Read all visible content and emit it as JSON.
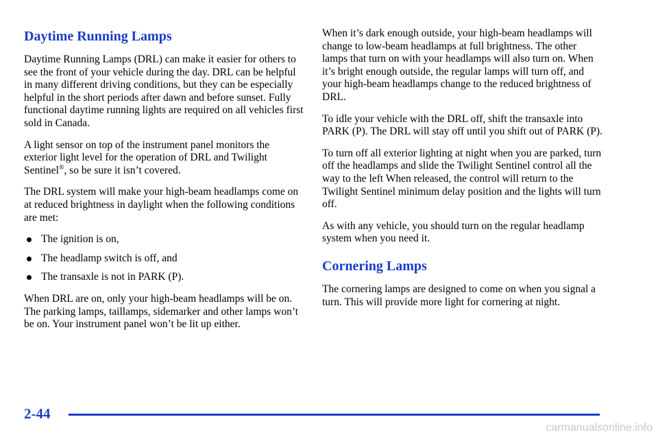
{
  "left": {
    "heading": "Daytime Running Lamps",
    "p1": "Daytime Running Lamps (DRL) can make it easier for others to see the front of your vehicle during the day. DRL can be helpful in many different driving conditions, but they can be especially helpful in the short periods after dawn and before sunset. Fully functional daytime running lights are required on all vehicles first sold in Canada.",
    "p2": {
      "before": "A light sensor on top of the instrument panel monitors the exterior light level for the operation of DRL and Twilight Sentinel",
      "sup": "®",
      "after": ", so be sure it isn’t covered."
    },
    "p3": "The DRL system will make your high-beam headlamps come on at reduced brightness in daylight when the following conditions are met:",
    "bullets": [
      "The ignition is on,",
      "The headlamp switch is off, and",
      "The transaxle is not in PARK (P)."
    ],
    "p4": "When DRL are on, only your high-beam headlamps will be on. The parking lamps, taillamps, sidemarker and other lamps won’t be on. Your instrument panel won’t be lit up either."
  },
  "right": {
    "p1": "When it’s dark enough outside, your high-beam headlamps will change to low-beam headlamps at full brightness. The other lamps that turn on with your headlamps will also turn on. When it’s bright enough outside, the regular lamps will turn off, and your high-beam headlamps change to the reduced brightness of DRL.",
    "p2": "To idle your vehicle with the DRL off, shift the transaxle into PARK (P). The DRL will stay off until you shift out of PARK (P).",
    "p3": "To turn off all exterior lighting at night when you are parked, turn off the headlamps and slide the Twilight Sentinel control all the way to the left When released, the control will return to the Twilight Sentinel minimum delay position and the lights will turn off.",
    "p4": "As with any vehicle, you should turn on the regular headlamp system when you need it.",
    "heading": "Cornering Lamps",
    "p5": "The cornering lamps are designed to come on when you signal a turn. This will provide more light for cornering at night."
  },
  "footer": {
    "page_number": "2-44",
    "watermark": "carmanualsonline.info"
  }
}
